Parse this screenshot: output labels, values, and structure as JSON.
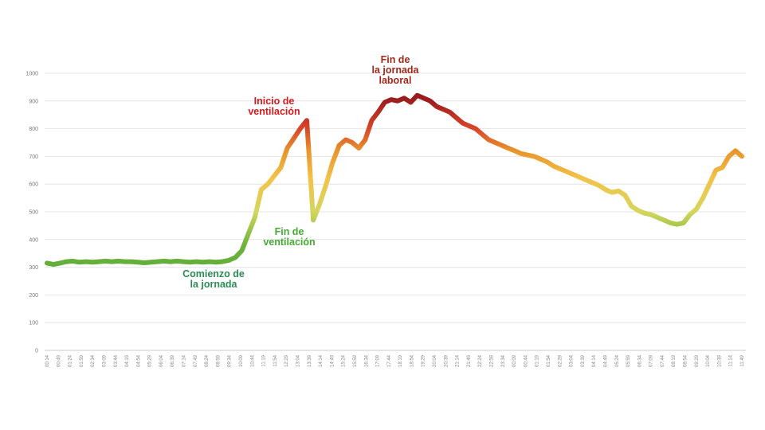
{
  "chart_data": {
    "type": "line",
    "title": "",
    "xlabel": "",
    "ylabel": "",
    "ylim": [
      0,
      1000
    ],
    "yticks": [
      "0",
      "100",
      "200",
      "300",
      "400",
      "500",
      "600",
      "700",
      "800",
      "900",
      "1000"
    ],
    "grid": true,
    "legend": "none",
    "x_tick_labels": [
      "00:14",
      "00:49",
      "01:24",
      "01:59",
      "02:34",
      "03:09",
      "03:44",
      "04:19",
      "04:54",
      "05:29",
      "06:04",
      "06:39",
      "07:14",
      "07:49",
      "08:24",
      "08:59",
      "09:34",
      "10:09",
      "10:44",
      "11:19",
      "11:54",
      "12:29",
      "13:04",
      "13:39",
      "14:14",
      "14:49",
      "15:24",
      "15:59",
      "16:34",
      "17:09",
      "17:44",
      "18:19",
      "18:54",
      "19:29",
      "20:04",
      "20:39",
      "21:14",
      "21:49",
      "22:24",
      "22:59",
      "23:34",
      "00:09",
      "00:44",
      "01:19",
      "01:54",
      "02:29",
      "03:04",
      "03:39",
      "04:14",
      "04:49",
      "05:24",
      "05:59",
      "06:34",
      "07:09",
      "07:44",
      "08:19",
      "08:54",
      "09:29",
      "10:04",
      "10:39",
      "11:14",
      "11:49"
    ],
    "series": [
      {
        "values": [
          315,
          310,
          315,
          320,
          322,
          318,
          320,
          318,
          320,
          322,
          320,
          322,
          320,
          320,
          318,
          316,
          318,
          320,
          322,
          320,
          322,
          320,
          318,
          320,
          318,
          320,
          318,
          320,
          325,
          335,
          360,
          420,
          480,
          580,
          600,
          630,
          660,
          730,
          765,
          800,
          830,
          470,
          530,
          600,
          680,
          740,
          760,
          750,
          730,
          760,
          830,
          860,
          895,
          905,
          900,
          910,
          895,
          920,
          910,
          900,
          880,
          870,
          860,
          840,
          820,
          810,
          800,
          780,
          760,
          750,
          740,
          730,
          720,
          710,
          705,
          700,
          690,
          680,
          665,
          655,
          645,
          635,
          625,
          615,
          605,
          595,
          580,
          570,
          575,
          560,
          520,
          505,
          495,
          490,
          480,
          470,
          460,
          455,
          460,
          490,
          510,
          550,
          600,
          650,
          660,
          700,
          720,
          700
        ]
      }
    ],
    "annotations": [
      {
        "id": "start",
        "lines": [
          "Comienzo de",
          "la jornada"
        ],
        "color": "#2e8b57"
      },
      {
        "id": "vent-start",
        "lines": [
          "Inicio de",
          "ventilación"
        ],
        "color": "#d7191c"
      },
      {
        "id": "vent-end",
        "lines": [
          "Fin de",
          "ventilación"
        ],
        "color": "#44aa33"
      },
      {
        "id": "work-end",
        "lines": [
          "Fin de",
          "la jornada",
          "laboral"
        ],
        "color": "#a02818"
      }
    ]
  }
}
